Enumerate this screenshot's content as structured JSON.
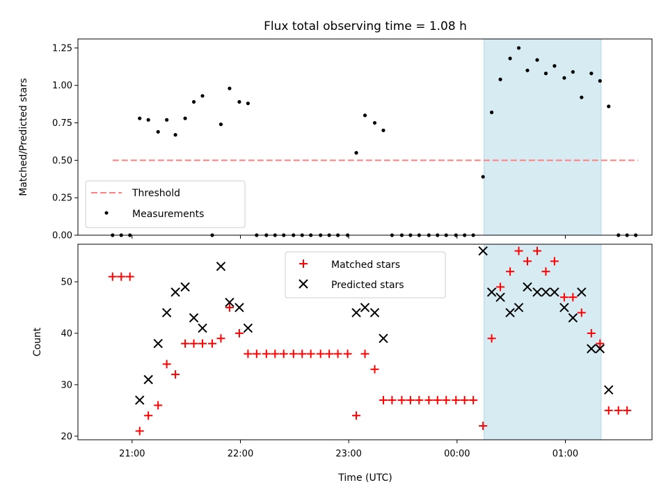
{
  "chart_data": {
    "type": "scatter",
    "title": "Flux total observing time = 1.08 h",
    "xlabel": "Time (UTC)",
    "x_tick_labels": [
      "21:00",
      "22:00",
      "23:00",
      "00:00",
      "01:00"
    ],
    "x_unit": "hours after 21:00 UTC",
    "xlim": [
      -0.5,
      4.8
    ],
    "shaded_span": [
      3.25,
      4.33
    ],
    "shade_color": "#add8e6",
    "top_panel": {
      "ylabel": "Matched/Predicted stars",
      "ylim": [
        0,
        1.31
      ],
      "yticks": [
        0,
        0.25,
        0.5,
        0.75,
        1.0,
        1.25
      ],
      "ytick_labels": [
        "0.00",
        "0.25",
        "0.50",
        "0.75",
        "1.00",
        "1.25"
      ],
      "legend_position": "lower-left",
      "threshold": {
        "name": "Threshold",
        "value": 0.5,
        "x_range": [
          -0.18,
          4.67
        ],
        "color": "#ff7f7f"
      },
      "measurements": {
        "name": "Measurements",
        "color": "#000000",
        "points": [
          [
            -0.18,
            0
          ],
          [
            -0.1,
            0
          ],
          [
            -0.02,
            0
          ],
          [
            0.07,
            0.78
          ],
          [
            0.15,
            0.77
          ],
          [
            0.24,
            0.69
          ],
          [
            0.32,
            0.77
          ],
          [
            0.4,
            0.67
          ],
          [
            0.49,
            0.78
          ],
          [
            0.57,
            0.89
          ],
          [
            0.65,
            0.93
          ],
          [
            0.74,
            0
          ],
          [
            0.82,
            0.74
          ],
          [
            0.9,
            0.98
          ],
          [
            0.99,
            0.89
          ],
          [
            1.07,
            0.88
          ],
          [
            1.15,
            0
          ],
          [
            1.24,
            0
          ],
          [
            1.32,
            0
          ],
          [
            1.4,
            0
          ],
          [
            1.49,
            0
          ],
          [
            1.57,
            0
          ],
          [
            1.65,
            0
          ],
          [
            1.74,
            0
          ],
          [
            1.82,
            0
          ],
          [
            1.9,
            0
          ],
          [
            1.99,
            0
          ],
          [
            2.07,
            0.55
          ],
          [
            2.15,
            0.8
          ],
          [
            2.24,
            0.75
          ],
          [
            2.32,
            0.7
          ],
          [
            2.4,
            0
          ],
          [
            2.49,
            0
          ],
          [
            2.57,
            0
          ],
          [
            2.65,
            0
          ],
          [
            2.74,
            0
          ],
          [
            2.82,
            0
          ],
          [
            2.9,
            0
          ],
          [
            2.99,
            0
          ],
          [
            3.07,
            0
          ],
          [
            3.15,
            0
          ],
          [
            3.24,
            0.39
          ],
          [
            3.32,
            0.82
          ],
          [
            3.4,
            1.04
          ],
          [
            3.49,
            1.18
          ],
          [
            3.57,
            1.25
          ],
          [
            3.65,
            1.1
          ],
          [
            3.74,
            1.17
          ],
          [
            3.82,
            1.08
          ],
          [
            3.9,
            1.13
          ],
          [
            3.99,
            1.05
          ],
          [
            4.07,
            1.09
          ],
          [
            4.15,
            0.92
          ],
          [
            4.24,
            1.08
          ],
          [
            4.32,
            1.03
          ],
          [
            4.4,
            0.86
          ],
          [
            4.49,
            0
          ],
          [
            4.57,
            0
          ],
          [
            4.65,
            0
          ]
        ]
      }
    },
    "bottom_panel": {
      "ylabel": "Count",
      "ylim": [
        19.3,
        57.3
      ],
      "yticks": [
        20,
        30,
        40,
        50
      ],
      "ytick_labels": [
        "20",
        "30",
        "40",
        "50"
      ],
      "legend_position": "upper-center",
      "series": [
        {
          "name": "Matched stars",
          "marker": "plus",
          "color": "#ff0000",
          "points": [
            [
              -0.18,
              51
            ],
            [
              -0.1,
              51
            ],
            [
              -0.02,
              51
            ],
            [
              0.07,
              21
            ],
            [
              0.15,
              24
            ],
            [
              0.24,
              26
            ],
            [
              0.32,
              34
            ],
            [
              0.4,
              32
            ],
            [
              0.49,
              38
            ],
            [
              0.57,
              38
            ],
            [
              0.65,
              38
            ],
            [
              0.74,
              38
            ],
            [
              0.82,
              39
            ],
            [
              0.9,
              45
            ],
            [
              0.99,
              40
            ],
            [
              1.07,
              36
            ],
            [
              1.15,
              36
            ],
            [
              1.24,
              36
            ],
            [
              1.32,
              36
            ],
            [
              1.4,
              36
            ],
            [
              1.49,
              36
            ],
            [
              1.57,
              36
            ],
            [
              1.65,
              36
            ],
            [
              1.74,
              36
            ],
            [
              1.82,
              36
            ],
            [
              1.9,
              36
            ],
            [
              1.99,
              36
            ],
            [
              2.07,
              24
            ],
            [
              2.15,
              36
            ],
            [
              2.24,
              33
            ],
            [
              2.32,
              27
            ],
            [
              2.4,
              27
            ],
            [
              2.49,
              27
            ],
            [
              2.57,
              27
            ],
            [
              2.65,
              27
            ],
            [
              2.74,
              27
            ],
            [
              2.82,
              27
            ],
            [
              2.9,
              27
            ],
            [
              2.99,
              27
            ],
            [
              3.07,
              27
            ],
            [
              3.15,
              27
            ],
            [
              3.24,
              22
            ],
            [
              3.32,
              39
            ],
            [
              3.4,
              49
            ],
            [
              3.49,
              52
            ],
            [
              3.57,
              56
            ],
            [
              3.65,
              54
            ],
            [
              3.74,
              56
            ],
            [
              3.82,
              52
            ],
            [
              3.9,
              54
            ],
            [
              3.99,
              47
            ],
            [
              4.07,
              47
            ],
            [
              4.15,
              44
            ],
            [
              4.24,
              40
            ],
            [
              4.32,
              38
            ],
            [
              4.4,
              25
            ],
            [
              4.49,
              25
            ],
            [
              4.57,
              25
            ]
          ]
        },
        {
          "name": "Predicted stars",
          "marker": "x",
          "color": "#000000",
          "points": [
            [
              0.07,
              27
            ],
            [
              0.15,
              31
            ],
            [
              0.24,
              38
            ],
            [
              0.32,
              44
            ],
            [
              0.4,
              48
            ],
            [
              0.49,
              49
            ],
            [
              0.57,
              43
            ],
            [
              0.65,
              41
            ],
            [
              0.82,
              53
            ],
            [
              0.9,
              46
            ],
            [
              0.99,
              45
            ],
            [
              1.07,
              41
            ],
            [
              2.07,
              44
            ],
            [
              2.15,
              45
            ],
            [
              2.24,
              44
            ],
            [
              2.32,
              39
            ],
            [
              3.24,
              56
            ],
            [
              3.32,
              48
            ],
            [
              3.4,
              47
            ],
            [
              3.49,
              44
            ],
            [
              3.57,
              45
            ],
            [
              3.65,
              49
            ],
            [
              3.74,
              48
            ],
            [
              3.82,
              48
            ],
            [
              3.9,
              48
            ],
            [
              3.99,
              45
            ],
            [
              4.07,
              43
            ],
            [
              4.15,
              48
            ],
            [
              4.24,
              37
            ],
            [
              4.32,
              37
            ],
            [
              4.4,
              29
            ]
          ]
        }
      ]
    }
  }
}
